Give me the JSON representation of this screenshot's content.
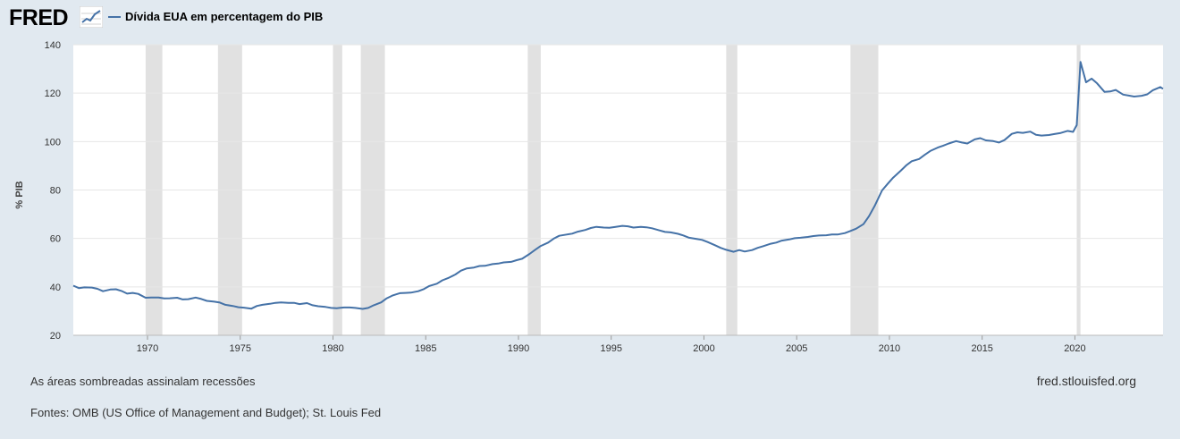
{
  "header": {
    "logo_text": "FRED",
    "legend_label": "Dívida EUA em percentagem do PIB"
  },
  "colors": {
    "background": "#e1e9f0",
    "plot_background": "#ffffff",
    "series": "#4572a7",
    "recession_shade": "#e1e1e1",
    "gridline": "#e6e6e6"
  },
  "icons": {
    "logo_graph": "line-chart-icon"
  },
  "chart_data": {
    "type": "line",
    "title": "",
    "ylabel": "% PIB",
    "xlabel": "",
    "ylim": [
      20,
      140
    ],
    "xlim": [
      1966.0,
      2024.75
    ],
    "y_ticks": [
      20,
      40,
      60,
      80,
      100,
      120,
      140
    ],
    "x_ticks": [
      1970,
      1975,
      1980,
      1985,
      1990,
      1995,
      2000,
      2005,
      2010,
      2015,
      2020
    ],
    "grid": true,
    "legend_position": "top-left",
    "recessions": [
      [
        1969.9,
        1970.8
      ],
      [
        1973.8,
        1975.1
      ],
      [
        1980.0,
        1980.5
      ],
      [
        1981.5,
        1982.8
      ],
      [
        1990.5,
        1991.2
      ],
      [
        2001.2,
        2001.8
      ],
      [
        2007.9,
        2009.4
      ],
      [
        2020.1,
        2020.3
      ]
    ],
    "series": [
      {
        "name": "Dívida EUA em percentagem do PIB",
        "points": [
          [
            1966.0,
            40.5
          ],
          [
            1966.3,
            39.5
          ],
          [
            1966.6,
            39.8
          ],
          [
            1967.0,
            39.7
          ],
          [
            1967.3,
            39.2
          ],
          [
            1967.6,
            38.2
          ],
          [
            1968.0,
            38.9
          ],
          [
            1968.3,
            39.0
          ],
          [
            1968.6,
            38.3
          ],
          [
            1968.9,
            37.2
          ],
          [
            1969.2,
            37.5
          ],
          [
            1969.5,
            37.1
          ],
          [
            1969.9,
            35.5
          ],
          [
            1970.2,
            35.6
          ],
          [
            1970.6,
            35.6
          ],
          [
            1970.9,
            35.2
          ],
          [
            1971.2,
            35.3
          ],
          [
            1971.6,
            35.5
          ],
          [
            1971.9,
            34.8
          ],
          [
            1972.2,
            34.9
          ],
          [
            1972.6,
            35.6
          ],
          [
            1972.9,
            35.0
          ],
          [
            1973.2,
            34.2
          ],
          [
            1973.6,
            33.9
          ],
          [
            1973.9,
            33.5
          ],
          [
            1974.2,
            32.6
          ],
          [
            1974.6,
            32.1
          ],
          [
            1974.9,
            31.6
          ],
          [
            1975.2,
            31.4
          ],
          [
            1975.6,
            31.0
          ],
          [
            1975.9,
            32.1
          ],
          [
            1976.2,
            32.6
          ],
          [
            1976.6,
            33.0
          ],
          [
            1976.9,
            33.4
          ],
          [
            1977.2,
            33.6
          ],
          [
            1977.6,
            33.4
          ],
          [
            1977.9,
            33.4
          ],
          [
            1978.2,
            32.9
          ],
          [
            1978.6,
            33.3
          ],
          [
            1978.9,
            32.4
          ],
          [
            1979.2,
            32.0
          ],
          [
            1979.6,
            31.7
          ],
          [
            1979.9,
            31.3
          ],
          [
            1980.2,
            31.2
          ],
          [
            1980.6,
            31.5
          ],
          [
            1980.9,
            31.5
          ],
          [
            1981.2,
            31.3
          ],
          [
            1981.6,
            30.9
          ],
          [
            1981.9,
            31.3
          ],
          [
            1982.2,
            32.4
          ],
          [
            1982.6,
            33.6
          ],
          [
            1982.9,
            35.3
          ],
          [
            1983.2,
            36.4
          ],
          [
            1983.6,
            37.4
          ],
          [
            1983.9,
            37.5
          ],
          [
            1984.2,
            37.6
          ],
          [
            1984.6,
            38.2
          ],
          [
            1984.9,
            39.1
          ],
          [
            1985.2,
            40.4
          ],
          [
            1985.6,
            41.3
          ],
          [
            1985.9,
            42.7
          ],
          [
            1986.2,
            43.6
          ],
          [
            1986.6,
            45.1
          ],
          [
            1986.9,
            46.7
          ],
          [
            1987.2,
            47.6
          ],
          [
            1987.6,
            48.0
          ],
          [
            1987.9,
            48.6
          ],
          [
            1988.2,
            48.7
          ],
          [
            1988.6,
            49.4
          ],
          [
            1988.9,
            49.6
          ],
          [
            1989.2,
            50.1
          ],
          [
            1989.6,
            50.3
          ],
          [
            1989.9,
            51.0
          ],
          [
            1990.2,
            51.6
          ],
          [
            1990.6,
            53.6
          ],
          [
            1990.9,
            55.3
          ],
          [
            1991.2,
            56.9
          ],
          [
            1991.6,
            58.3
          ],
          [
            1991.9,
            59.9
          ],
          [
            1992.2,
            61.1
          ],
          [
            1992.6,
            61.6
          ],
          [
            1992.9,
            62.0
          ],
          [
            1993.2,
            62.8
          ],
          [
            1993.6,
            63.5
          ],
          [
            1993.9,
            64.3
          ],
          [
            1994.2,
            64.8
          ],
          [
            1994.6,
            64.5
          ],
          [
            1994.9,
            64.4
          ],
          [
            1995.2,
            64.7
          ],
          [
            1995.6,
            65.2
          ],
          [
            1995.9,
            65.0
          ],
          [
            1996.2,
            64.5
          ],
          [
            1996.6,
            64.8
          ],
          [
            1996.9,
            64.6
          ],
          [
            1997.2,
            64.2
          ],
          [
            1997.6,
            63.3
          ],
          [
            1997.9,
            62.7
          ],
          [
            1998.2,
            62.5
          ],
          [
            1998.6,
            61.9
          ],
          [
            1998.9,
            61.2
          ],
          [
            1999.2,
            60.3
          ],
          [
            1999.6,
            59.8
          ],
          [
            1999.9,
            59.4
          ],
          [
            2000.2,
            58.5
          ],
          [
            2000.6,
            57.2
          ],
          [
            2000.9,
            56.1
          ],
          [
            2001.2,
            55.3
          ],
          [
            2001.6,
            54.5
          ],
          [
            2001.9,
            55.2
          ],
          [
            2002.2,
            54.6
          ],
          [
            2002.6,
            55.2
          ],
          [
            2002.9,
            56.1
          ],
          [
            2003.2,
            56.8
          ],
          [
            2003.6,
            57.8
          ],
          [
            2003.9,
            58.3
          ],
          [
            2004.2,
            59.1
          ],
          [
            2004.6,
            59.6
          ],
          [
            2004.9,
            60.1
          ],
          [
            2005.2,
            60.3
          ],
          [
            2005.6,
            60.6
          ],
          [
            2005.9,
            61.0
          ],
          [
            2006.2,
            61.2
          ],
          [
            2006.6,
            61.3
          ],
          [
            2006.9,
            61.6
          ],
          [
            2007.2,
            61.6
          ],
          [
            2007.6,
            62.2
          ],
          [
            2007.9,
            63.1
          ],
          [
            2008.2,
            64.0
          ],
          [
            2008.6,
            65.9
          ],
          [
            2008.9,
            69.2
          ],
          [
            2009.2,
            73.4
          ],
          [
            2009.6,
            79.8
          ],
          [
            2009.9,
            82.5
          ],
          [
            2010.2,
            85.1
          ],
          [
            2010.6,
            87.9
          ],
          [
            2010.9,
            90.1
          ],
          [
            2011.2,
            91.9
          ],
          [
            2011.6,
            92.8
          ],
          [
            2011.9,
            94.5
          ],
          [
            2012.2,
            96.1
          ],
          [
            2012.6,
            97.5
          ],
          [
            2012.9,
            98.3
          ],
          [
            2013.2,
            99.2
          ],
          [
            2013.6,
            100.2
          ],
          [
            2013.9,
            99.6
          ],
          [
            2014.2,
            99.2
          ],
          [
            2014.6,
            100.9
          ],
          [
            2014.9,
            101.4
          ],
          [
            2015.2,
            100.5
          ],
          [
            2015.6,
            100.2
          ],
          [
            2015.9,
            99.6
          ],
          [
            2016.2,
            100.6
          ],
          [
            2016.6,
            103.2
          ],
          [
            2016.9,
            103.8
          ],
          [
            2017.2,
            103.6
          ],
          [
            2017.6,
            104.1
          ],
          [
            2017.9,
            102.8
          ],
          [
            2018.2,
            102.5
          ],
          [
            2018.6,
            102.7
          ],
          [
            2018.9,
            103.1
          ],
          [
            2019.2,
            103.5
          ],
          [
            2019.6,
            104.4
          ],
          [
            2019.9,
            104.0
          ],
          [
            2020.1,
            106.8
          ],
          [
            2020.3,
            132.9
          ],
          [
            2020.6,
            124.5
          ],
          [
            2020.9,
            126.0
          ],
          [
            2021.2,
            124.0
          ],
          [
            2021.6,
            120.5
          ],
          [
            2021.9,
            120.7
          ],
          [
            2022.2,
            121.3
          ],
          [
            2022.6,
            119.4
          ],
          [
            2022.9,
            119.0
          ],
          [
            2023.2,
            118.6
          ],
          [
            2023.6,
            118.9
          ],
          [
            2023.9,
            119.5
          ],
          [
            2024.2,
            121.2
          ],
          [
            2024.6,
            122.5
          ],
          [
            2024.75,
            121.8
          ]
        ]
      }
    ]
  },
  "footer": {
    "recession_note": "As áreas sombreadas assinalam recessões",
    "sources": "Fontes: OMB (US Office of Management and Budget); St. Louis Fed",
    "site": "fred.stlouisfed.org"
  }
}
